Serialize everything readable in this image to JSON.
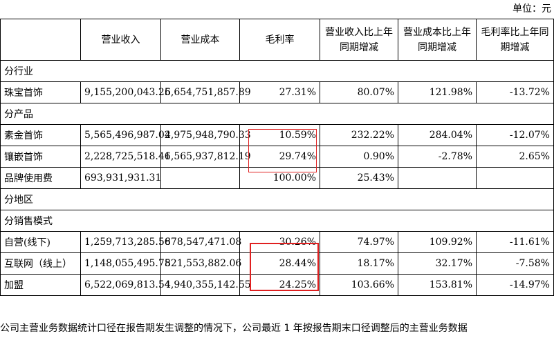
{
  "unit_label": "单位：元",
  "headers": [
    "",
    "营业收入",
    "营业成本",
    "毛利率",
    "营业收入比上年同期增减",
    "营业成本比上年同期增减",
    "毛利率比上年同期增减"
  ],
  "rows": [
    {
      "type": "section",
      "label": "分行业"
    },
    {
      "type": "data",
      "label": "珠宝首饰",
      "values": [
        "9,155,200,043.25",
        "6,654,751,857.89",
        "27.31%",
        "80.07%",
        "121.98%",
        "-13.72%"
      ]
    },
    {
      "type": "section",
      "label": "分产品"
    },
    {
      "type": "data",
      "label": "素金首饰",
      "values": [
        "5,565,496,987.02",
        "4,975,948,790.33",
        "10.59%",
        "232.22%",
        "284.04%",
        "-12.07%"
      ]
    },
    {
      "type": "data",
      "label": "镶嵌首饰",
      "values": [
        "2,228,725,518.46",
        "1,565,937,812.19",
        "29.74%",
        "0.90%",
        "-2.78%",
        "2.65%"
      ]
    },
    {
      "type": "data",
      "label": "品牌使用费",
      "values": [
        "693,931,931.31",
        "",
        "100.00%",
        "25.43%",
        "",
        ""
      ]
    },
    {
      "type": "section",
      "label": "分地区"
    },
    {
      "type": "section",
      "label": "分销售模式"
    },
    {
      "type": "data",
      "label": "自营(线下)",
      "values": [
        "1,259,713,285.56",
        "878,547,471.08",
        "30.26%",
        "74.97%",
        "109.92%",
        "-11.61%"
      ]
    },
    {
      "type": "data",
      "label": "互联网（线上）",
      "values": [
        "1,148,055,495.75",
        "821,553,882.06",
        "28.44%",
        "18.17%",
        "32.17%",
        "-7.58%"
      ]
    },
    {
      "type": "data",
      "label": "加盟",
      "values": [
        "6,522,069,813.54",
        "4,940,355,142.55",
        "24.25%",
        "103.66%",
        "153.81%",
        "-14.97%"
      ]
    }
  ],
  "footnote": "公司主营业务数据统计口径在报告期发生调整的情况下，公司最近 1 年按报告期末口径调整后的主营业务数据",
  "highlight_color": "#e02020"
}
